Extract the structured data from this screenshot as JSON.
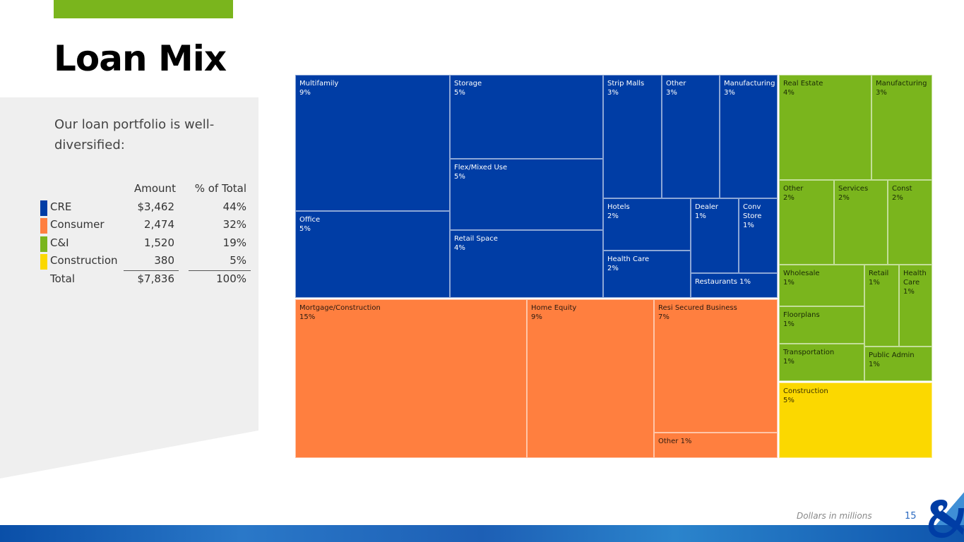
{
  "page": {
    "title": "Loan Mix",
    "intro": "Our loan portfolio is well-diversified:",
    "footnote": "Dollars in millions",
    "page_number": "15"
  },
  "summary": {
    "headers": {
      "amount": "Amount",
      "pct": "% of Total"
    },
    "rows": [
      {
        "label": "CRE",
        "amount": "$3,462",
        "pct": "44%",
        "color": "#003da5"
      },
      {
        "label": "Consumer",
        "amount": "2,474",
        "pct": "32%",
        "color": "#ff7f3f"
      },
      {
        "label": "C&I",
        "amount": "1,520",
        "pct": "19%",
        "color": "#7ab51d"
      },
      {
        "label": "Construction",
        "amount": "380",
        "pct": "5%",
        "color": "#fbd800"
      }
    ],
    "total": {
      "label": "Total",
      "amount": "$7,836",
      "pct": "100%"
    }
  },
  "treemap": {
    "cells": [
      {
        "name": "Multifamily",
        "pct": "9%",
        "group": "blue"
      },
      {
        "name": "Office",
        "pct": "5%",
        "group": "blue"
      },
      {
        "name": "Storage",
        "pct": "5%",
        "group": "blue"
      },
      {
        "name": "Flex/Mixed Use",
        "pct": "5%",
        "group": "blue"
      },
      {
        "name": "Retail Space",
        "pct": "4%",
        "group": "blue"
      },
      {
        "name": "Strip Malls",
        "pct": "3%",
        "group": "blue"
      },
      {
        "name": "Other",
        "pct": "3%",
        "group": "blue"
      },
      {
        "name": "Manufacturing",
        "pct": "3%",
        "group": "blue"
      },
      {
        "name": "Hotels",
        "pct": "2%",
        "group": "blue"
      },
      {
        "name": "Dealer",
        "pct": "1%",
        "group": "blue"
      },
      {
        "name": "Conv Store",
        "pct": "1%",
        "group": "blue"
      },
      {
        "name": "Health Care",
        "pct": "2%",
        "group": "blue"
      },
      {
        "name": "Restaurants 1%",
        "pct": "1%",
        "group": "blue"
      },
      {
        "name": "Mortgage/Construction",
        "pct": "15%",
        "group": "orange"
      },
      {
        "name": "Home Equity",
        "pct": "9%",
        "group": "orange"
      },
      {
        "name": "Resi Secured Business",
        "pct": "7%",
        "group": "orange"
      },
      {
        "name": "Other 1%",
        "pct": "",
        "group": "orange"
      },
      {
        "name": "Real Estate",
        "pct": "4%",
        "group": "green"
      },
      {
        "name": "Manufacturing",
        "pct": "3%",
        "group": "green"
      },
      {
        "name": "Other",
        "pct": "2%",
        "group": "green"
      },
      {
        "name": "Services",
        "pct": "2%",
        "group": "green"
      },
      {
        "name": "Const",
        "pct": "2%",
        "group": "green"
      },
      {
        "name": "Wholesale",
        "pct": "1%",
        "group": "green"
      },
      {
        "name": "Retail",
        "pct": "1%",
        "group": "green"
      },
      {
        "name": "Health Care",
        "pct": "1%",
        "group": "green"
      },
      {
        "name": "Floorplans",
        "pct": "1%",
        "group": "green"
      },
      {
        "name": "Transportation",
        "pct": "1%",
        "group": "green"
      },
      {
        "name": "Public Admin",
        "pct": "1%",
        "group": "green"
      },
      {
        "name": "Construction",
        "pct": "5%",
        "group": "yellow"
      }
    ]
  }
}
